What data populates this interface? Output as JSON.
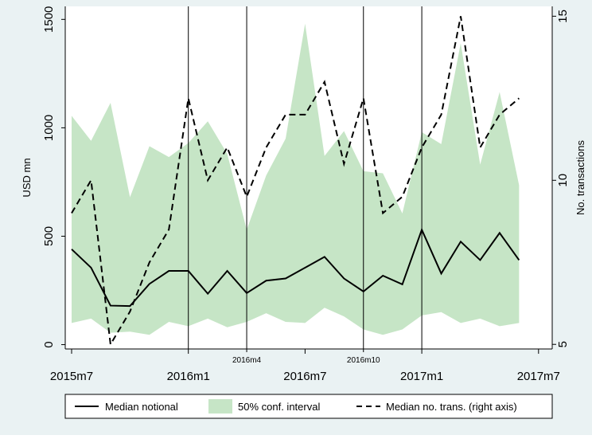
{
  "chart_data": {
    "type": "line",
    "x": [
      "2015m7",
      "2015m8",
      "2015m9",
      "2015m10",
      "2015m11",
      "2015m12",
      "2016m1",
      "2016m2",
      "2016m3",
      "2016m4",
      "2016m5",
      "2016m6",
      "2016m7",
      "2016m8",
      "2016m9",
      "2016m10",
      "2016m11",
      "2016m12",
      "2017m1",
      "2017m2",
      "2017m3",
      "2017m4",
      "2017m5",
      "2017m6"
    ],
    "xticks": [
      {
        "label": "2015m7",
        "x": 0,
        "level": "major"
      },
      {
        "label": "2016m1",
        "x": 6,
        "level": "major"
      },
      {
        "label": "2016m4",
        "x": 9,
        "level": "minor"
      },
      {
        "label": "2016m7",
        "x": 12,
        "level": "major"
      },
      {
        "label": "2016m10",
        "x": 15,
        "level": "minor"
      },
      {
        "label": "2017m1",
        "x": 18,
        "level": "major"
      },
      {
        "label": "2017m7",
        "x": 24,
        "level": "major"
      }
    ],
    "vlines": [
      6,
      9,
      15,
      18
    ],
    "xlim": [
      0,
      24
    ],
    "ylabel": "USD mn",
    "ylim": [
      -20,
      1560
    ],
    "yticks": [
      0,
      500,
      1000,
      1500
    ],
    "y2label": "No. transactions",
    "y2lim": [
      4.86,
      15.3
    ],
    "y2ticks": [
      5,
      10,
      15
    ],
    "series": [
      {
        "name": "Median notional",
        "axis": "left",
        "style": "solid",
        "color": "#000000",
        "values": [
          440,
          355,
          180,
          178,
          280,
          340,
          340,
          235,
          340,
          238,
          295,
          305,
          355,
          405,
          305,
          245,
          318,
          278,
          530,
          328,
          475,
          390,
          515,
          390
        ]
      },
      {
        "name": "50% conf. interval",
        "axis": "left",
        "style": "band",
        "color": "#c6e5c6",
        "lower": [
          100,
          120,
          55,
          60,
          45,
          105,
          85,
          120,
          80,
          105,
          145,
          105,
          100,
          170,
          130,
          70,
          45,
          70,
          135,
          150,
          100,
          120,
          85,
          100
        ],
        "upper": [
          1055,
          940,
          1115,
          680,
          915,
          865,
          930,
          1030,
          880,
          530,
          780,
          950,
          1480,
          870,
          985,
          800,
          790,
          605,
          980,
          925,
          1390,
          830,
          1165,
          735
        ]
      },
      {
        "name": "Median no. trans. (right axis)",
        "axis": "right",
        "style": "dashed",
        "color": "#000000",
        "values": [
          9,
          10,
          5,
          6,
          7.5,
          8.5,
          12.5,
          10,
          11,
          9.5,
          11,
          12,
          12,
          13,
          10.5,
          12.5,
          9,
          9.5,
          11,
          12,
          15,
          11,
          12,
          12.5
        ]
      }
    ],
    "legend_position": "bottom"
  }
}
